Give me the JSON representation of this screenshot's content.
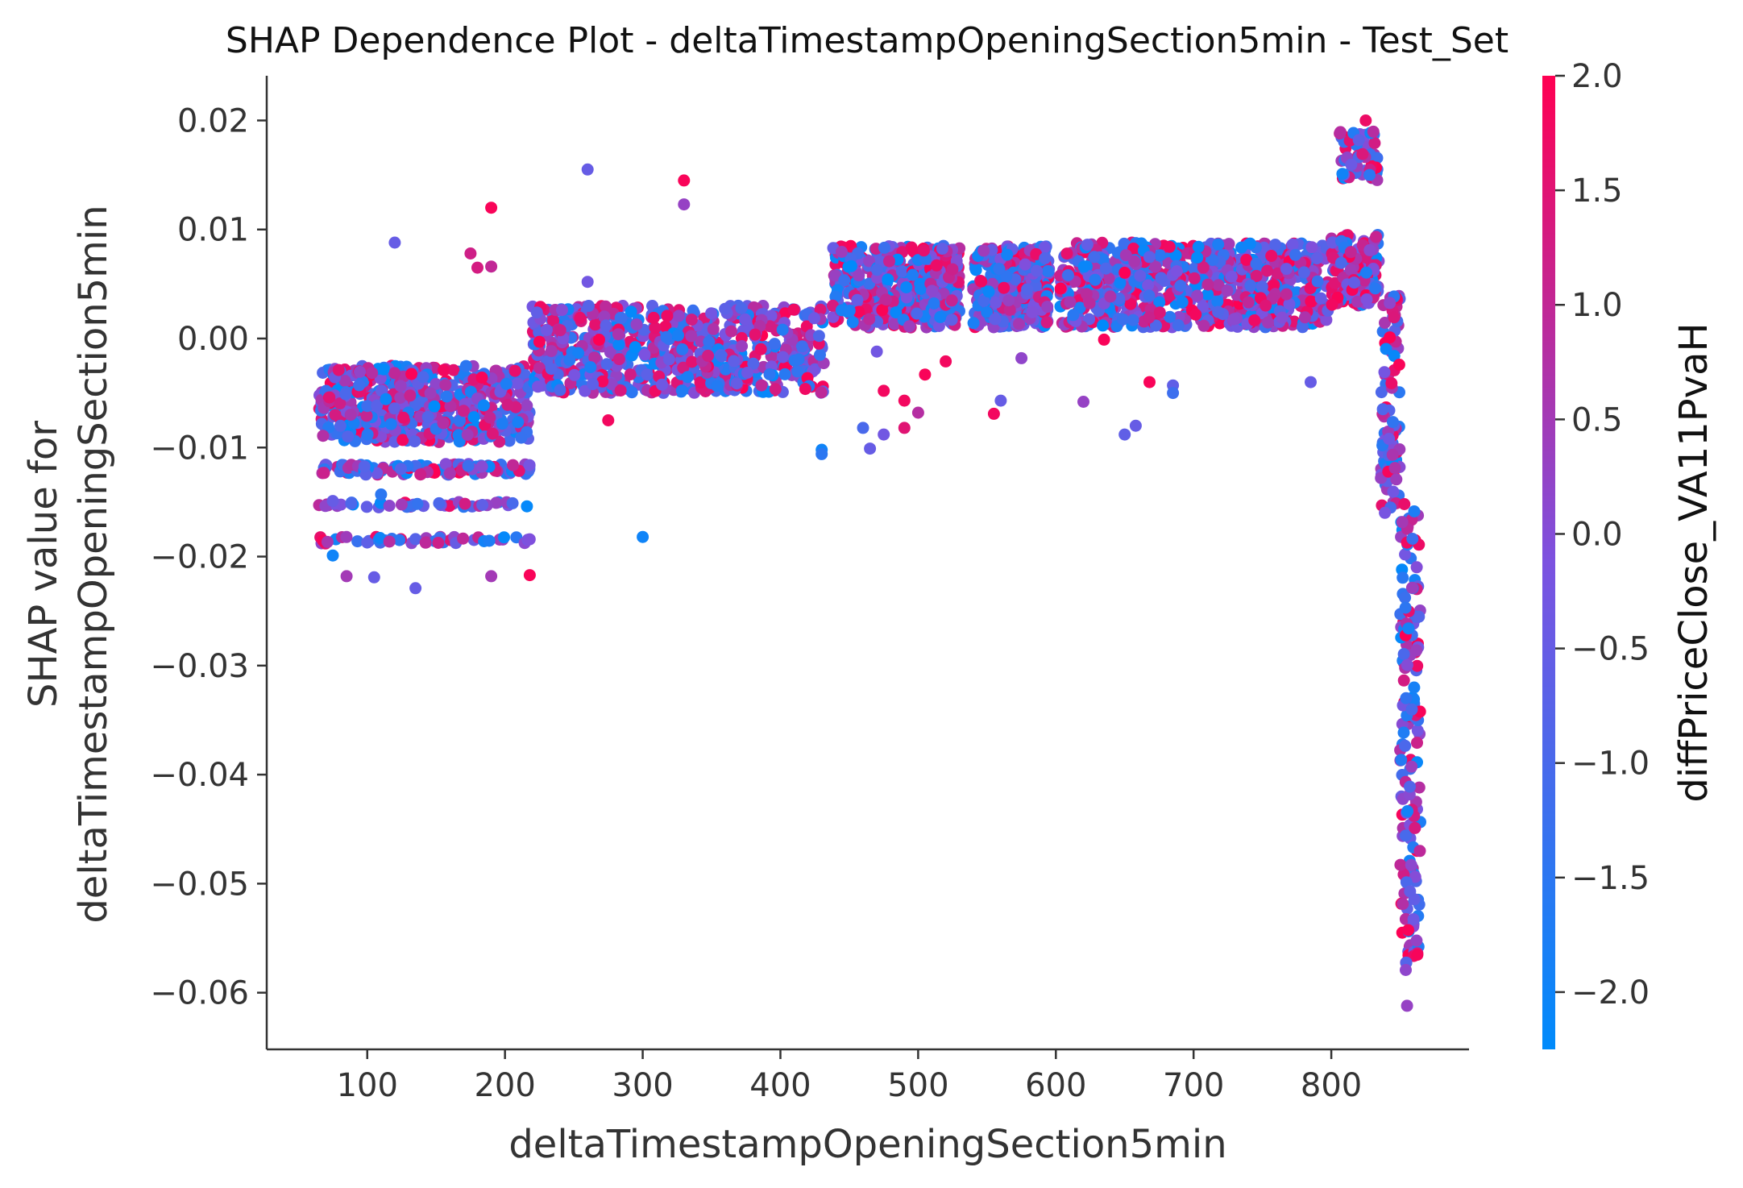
{
  "chart_data": {
    "type": "scatter",
    "title": "SHAP Dependence Plot - deltaTimestampOpeningSection5min - Test_Set",
    "xlabel": "deltaTimestampOpeningSection5min",
    "ylabel_line1": "SHAP value for",
    "ylabel_line2": "deltaTimestampOpeningSection5min",
    "xlim": [
      27,
      900
    ],
    "ylim": [
      -0.0652,
      0.0241
    ],
    "x_ticks": [
      100,
      200,
      300,
      400,
      500,
      600,
      700,
      800
    ],
    "x_tick_labels": [
      "100",
      "200",
      "300",
      "400",
      "500",
      "600",
      "700",
      "800"
    ],
    "y_ticks": [
      0.02,
      0.01,
      0.0,
      -0.01,
      -0.02,
      -0.03,
      -0.04,
      -0.05,
      -0.06
    ],
    "y_tick_labels": [
      "0.02",
      "0.01",
      "0.00",
      "−0.01",
      "−0.02",
      "−0.03",
      "−0.04",
      "−0.05",
      "−0.06"
    ],
    "grid": false,
    "colorbar": {
      "label": "diffPriceClose_VA11PvaH",
      "range": [
        -2.25,
        2.0
      ],
      "ticks": [
        2.0,
        1.5,
        1.0,
        0.5,
        0.0,
        -0.5,
        -1.0,
        -1.5,
        -2.0
      ],
      "tick_labels": [
        "2.0",
        "1.5",
        "1.0",
        "0.5",
        "0.0",
        "−0.5",
        "−1.0",
        "−1.5",
        "−2.0"
      ],
      "colors": [
        "#008bfb",
        "#7c52e0",
        "#ff0052"
      ]
    },
    "clusters": [
      {
        "x": [
          65,
          218
        ],
        "y": [
          -0.0095,
          -0.0025
        ],
        "n": 520
      },
      {
        "x": [
          65,
          218
        ],
        "y": [
          -0.0125,
          -0.0115
        ],
        "n": 110
      },
      {
        "x": [
          65,
          218
        ],
        "y": [
          -0.0155,
          -0.015
        ],
        "n": 40
      },
      {
        "x": [
          65,
          218
        ],
        "y": [
          -0.0188,
          -0.0182
        ],
        "n": 50
      },
      {
        "x": [
          220,
          432
        ],
        "y": [
          -0.005,
          0.003
        ],
        "n": 700
      },
      {
        "x": [
          438,
          530
        ],
        "y": [
          0.001,
          0.0085
        ],
        "n": 450
      },
      {
        "x": [
          540,
          595
        ],
        "y": [
          0.001,
          0.0085
        ],
        "n": 320
      },
      {
        "x": [
          603,
          798
        ],
        "y": [
          0.001,
          0.0088
        ],
        "n": 800
      },
      {
        "x": [
          800,
          835
        ],
        "y": [
          0.003,
          0.0095
        ],
        "n": 160
      },
      {
        "x": [
          806,
          835
        ],
        "y": [
          0.0145,
          0.019
        ],
        "n": 60
      },
      {
        "x": [
          836,
          850
        ],
        "y": [
          -0.016,
          0.004
        ],
        "n": 90
      },
      {
        "x": [
          850,
          865
        ],
        "y": [
          -0.058,
          -0.015
        ],
        "n": 160
      }
    ],
    "points": [
      {
        "x": 120,
        "y": 0.0088,
        "c": -0.5
      },
      {
        "x": 175,
        "y": 0.0078,
        "c": 1.2
      },
      {
        "x": 180,
        "y": 0.0065,
        "c": 1.3
      },
      {
        "x": 190,
        "y": 0.012,
        "c": 1.9
      },
      {
        "x": 190,
        "y": 0.0066,
        "c": 1.0
      },
      {
        "x": 260,
        "y": 0.0155,
        "c": -0.5
      },
      {
        "x": 260,
        "y": 0.0052,
        "c": -0.3
      },
      {
        "x": 330,
        "y": 0.0145,
        "c": 1.9
      },
      {
        "x": 330,
        "y": 0.0123,
        "c": 0.3
      },
      {
        "x": 300,
        "y": -0.0182,
        "c": -2.0
      },
      {
        "x": 275,
        "y": -0.0075,
        "c": 1.8
      },
      {
        "x": 430,
        "y": -0.0102,
        "c": -2.0
      },
      {
        "x": 430,
        "y": -0.0106,
        "c": -1.5
      },
      {
        "x": 460,
        "y": -0.0082,
        "c": -1.0
      },
      {
        "x": 465,
        "y": -0.0101,
        "c": -0.5
      },
      {
        "x": 475,
        "y": -0.0048,
        "c": 1.8
      },
      {
        "x": 475,
        "y": -0.0088,
        "c": -0.3
      },
      {
        "x": 490,
        "y": -0.0057,
        "c": 1.8
      },
      {
        "x": 490,
        "y": -0.0082,
        "c": 1.5
      },
      {
        "x": 500,
        "y": -0.0068,
        "c": 0.8
      },
      {
        "x": 505,
        "y": -0.0033,
        "c": 1.9
      },
      {
        "x": 520,
        "y": -0.0021,
        "c": 1.8
      },
      {
        "x": 470,
        "y": -0.0012,
        "c": -0.3
      },
      {
        "x": 555,
        "y": -0.0069,
        "c": 1.8
      },
      {
        "x": 560,
        "y": -0.0057,
        "c": -0.5
      },
      {
        "x": 575,
        "y": -0.0018,
        "c": 0.2
      },
      {
        "x": 620,
        "y": -0.0058,
        "c": 0.3
      },
      {
        "x": 650,
        "y": -0.0088,
        "c": -0.6
      },
      {
        "x": 658,
        "y": -0.008,
        "c": -0.5
      },
      {
        "x": 668,
        "y": -0.004,
        "c": 1.9
      },
      {
        "x": 685,
        "y": -0.0043,
        "c": -0.6
      },
      {
        "x": 685,
        "y": -0.005,
        "c": -1.2
      },
      {
        "x": 785,
        "y": -0.004,
        "c": -0.5
      },
      {
        "x": 635,
        "y": -0.0001,
        "c": 1.9
      },
      {
        "x": 75,
        "y": -0.0199,
        "c": -2.0
      },
      {
        "x": 85,
        "y": -0.0218,
        "c": 0.5
      },
      {
        "x": 105,
        "y": -0.0219,
        "c": -0.5
      },
      {
        "x": 135,
        "y": -0.0229,
        "c": -0.5
      },
      {
        "x": 190,
        "y": -0.0218,
        "c": 0.5
      },
      {
        "x": 218,
        "y": -0.0217,
        "c": 1.9
      },
      {
        "x": 75,
        "y": -0.0149,
        "c": -0.5
      },
      {
        "x": 110,
        "y": -0.0143,
        "c": -1.5
      },
      {
        "x": 225,
        "y": -0.0003,
        "c": 1.9
      },
      {
        "x": 855,
        "y": -0.0612,
        "c": 0.3
      },
      {
        "x": 825,
        "y": 0.02,
        "c": 1.7
      }
    ]
  }
}
